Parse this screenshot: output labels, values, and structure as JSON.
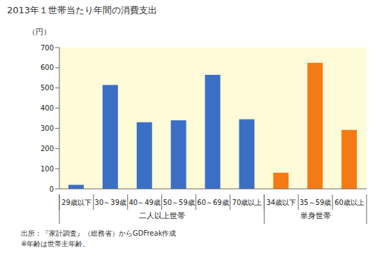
{
  "chart_data": {
    "type": "bar",
    "title": "2013年１世帯当たり年間の消費支出",
    "y_label": "（円）",
    "categories": [
      "29歳以下",
      "30～39歳",
      "40～49歳",
      "50～59歳",
      "60～69歳",
      "70歳以上",
      "34歳以下",
      "35～59歳",
      "60歳以上"
    ],
    "category_groups": [
      "二人以上世帯",
      "二人以上世帯",
      "二人以上世帯",
      "二人以上世帯",
      "二人以上世帯",
      "二人以上世帯",
      "単身世帯",
      "単身世帯",
      "単身世帯"
    ],
    "values": [
      20,
      515,
      330,
      340,
      565,
      345,
      80,
      625,
      292
    ],
    "colors": [
      "#3b6fc6",
      "#3b6fc6",
      "#3b6fc6",
      "#3b6fc6",
      "#3b6fc6",
      "#3b6fc6",
      "#f47b13",
      "#f47b13",
      "#f47b13"
    ],
    "ylim": [
      0,
      700
    ],
    "yticks": [
      0,
      100,
      200,
      300,
      400,
      500,
      600,
      700
    ],
    "grid": false,
    "notes": [
      "出所：『家計調査』（総務省）からGDFreak作成",
      "※年齢は世帯主年齢。"
    ]
  }
}
